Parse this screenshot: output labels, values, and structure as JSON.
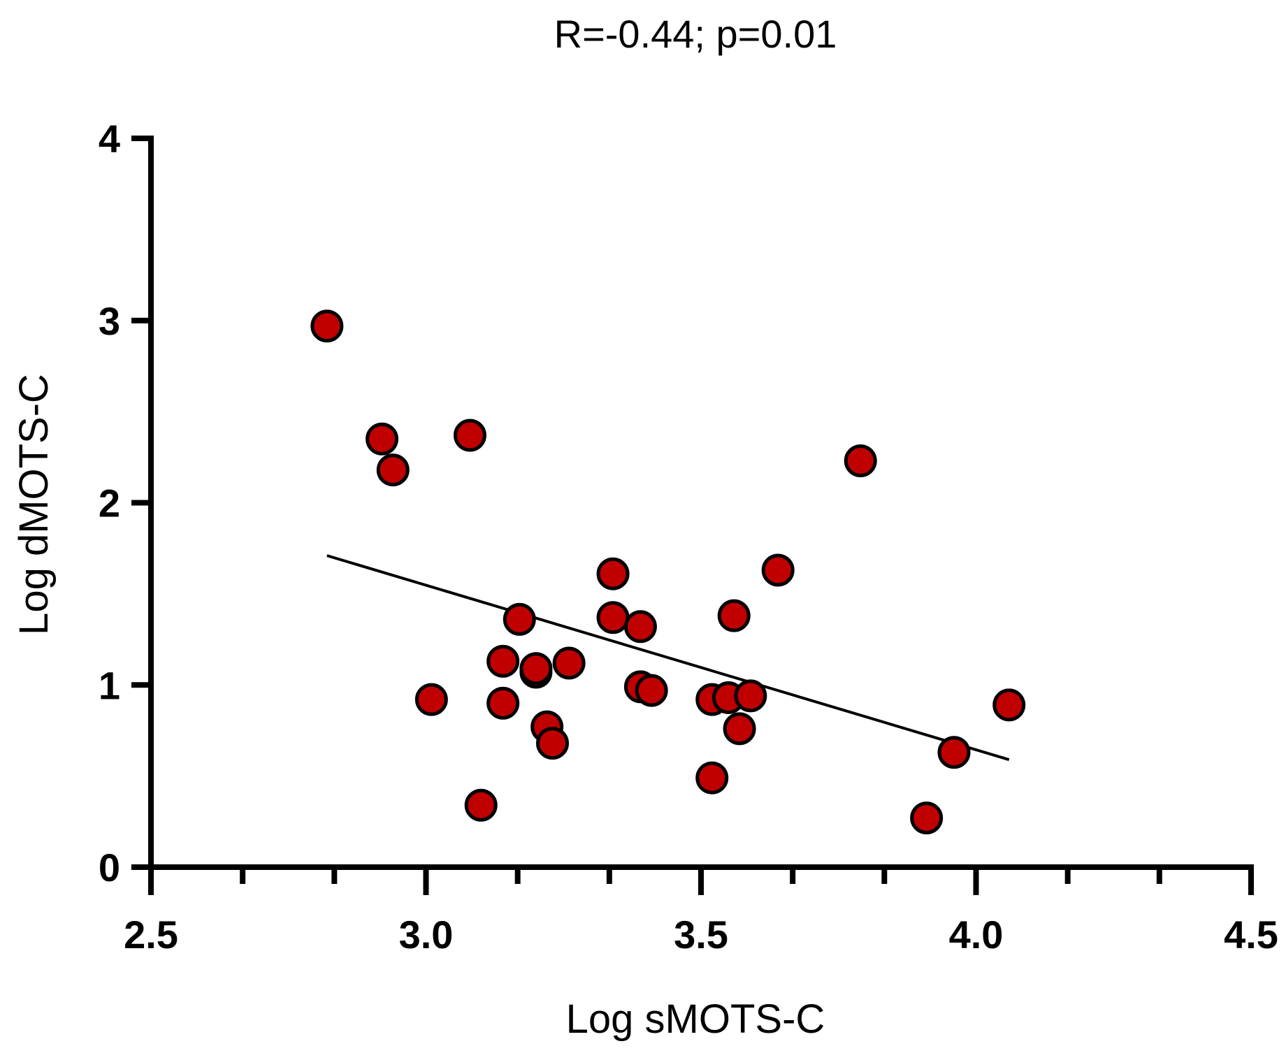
{
  "chart_data": {
    "type": "scatter",
    "title": "R=-0.44; p=0.01",
    "xlabel": "Log sMOTS-C",
    "ylabel": "Log dMOTS-C",
    "xlim": [
      2.5,
      4.5
    ],
    "ylim": [
      0,
      4
    ],
    "x_ticks": [
      2.5,
      3.0,
      3.5,
      4.0,
      4.5
    ],
    "x_tick_labels": [
      "2.5",
      "3.0",
      "3.5",
      "4.0",
      "4.5"
    ],
    "x_minor_step": 0.1667,
    "y_ticks": [
      0,
      1,
      2,
      3,
      4
    ],
    "y_tick_labels": [
      "0",
      "1",
      "2",
      "3",
      "4"
    ],
    "point_color": "#c00000",
    "grid": false,
    "series": [
      {
        "name": "samples",
        "points": [
          {
            "x": 2.82,
            "y": 2.97
          },
          {
            "x": 2.92,
            "y": 2.35
          },
          {
            "x": 2.94,
            "y": 2.18
          },
          {
            "x": 3.01,
            "y": 0.92
          },
          {
            "x": 3.08,
            "y": 2.37
          },
          {
            "x": 3.1,
            "y": 0.34
          },
          {
            "x": 3.14,
            "y": 1.13
          },
          {
            "x": 3.14,
            "y": 0.9
          },
          {
            "x": 3.17,
            "y": 1.36
          },
          {
            "x": 3.2,
            "y": 1.07
          },
          {
            "x": 3.2,
            "y": 1.09
          },
          {
            "x": 3.22,
            "y": 0.77
          },
          {
            "x": 3.23,
            "y": 0.68
          },
          {
            "x": 3.26,
            "y": 1.12
          },
          {
            "x": 3.34,
            "y": 1.61
          },
          {
            "x": 3.34,
            "y": 1.37
          },
          {
            "x": 3.39,
            "y": 1.32
          },
          {
            "x": 3.39,
            "y": 0.99
          },
          {
            "x": 3.41,
            "y": 0.97
          },
          {
            "x": 3.52,
            "y": 0.92
          },
          {
            "x": 3.52,
            "y": 0.49
          },
          {
            "x": 3.55,
            "y": 0.93
          },
          {
            "x": 3.56,
            "y": 1.38
          },
          {
            "x": 3.57,
            "y": 0.76
          },
          {
            "x": 3.59,
            "y": 0.94
          },
          {
            "x": 3.64,
            "y": 1.63
          },
          {
            "x": 3.79,
            "y": 2.23
          },
          {
            "x": 3.91,
            "y": 0.27
          },
          {
            "x": 3.96,
            "y": 0.63
          },
          {
            "x": 4.06,
            "y": 0.89
          }
        ]
      }
    ],
    "regression_line": {
      "x": [
        2.82,
        4.06
      ],
      "y": [
        1.71,
        0.59
      ]
    }
  }
}
